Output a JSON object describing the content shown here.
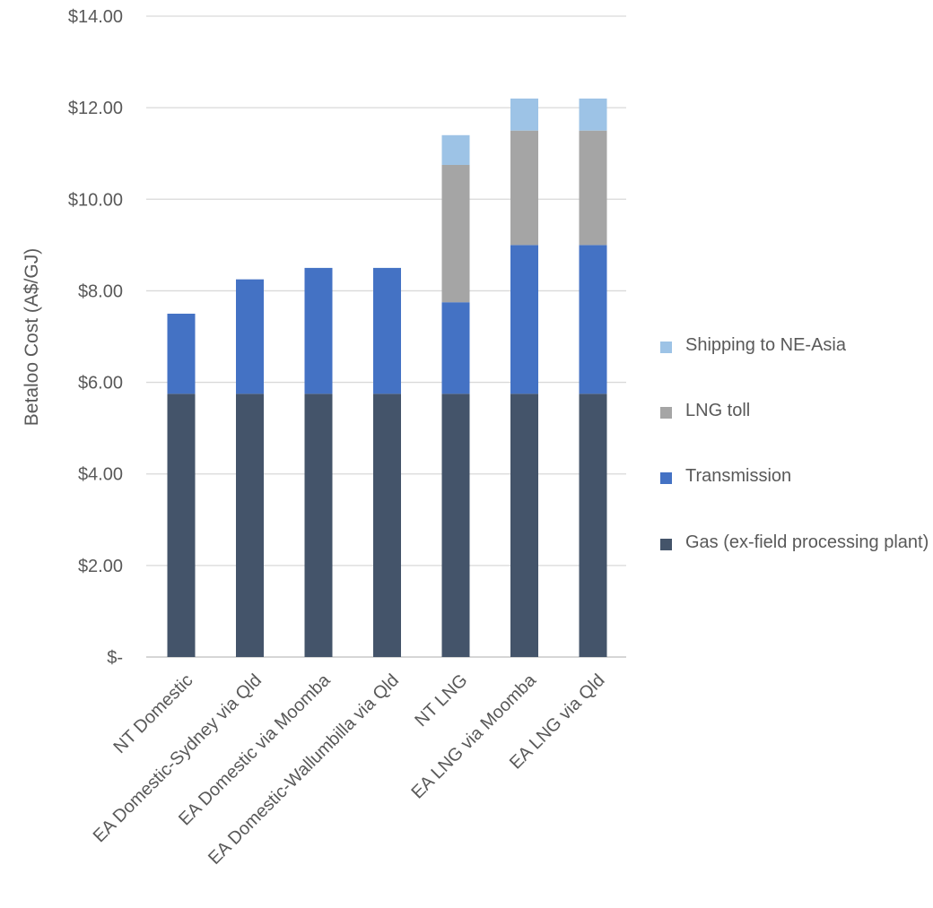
{
  "chart_data": {
    "type": "bar",
    "stacked": true,
    "title": "",
    "xlabel": "",
    "ylabel": "Betaloo Cost (A$/GJ)",
    "ylim": [
      0,
      14
    ],
    "yticks": [
      0,
      2,
      4,
      6,
      8,
      10,
      12,
      14
    ],
    "ytick_labels": [
      "$-",
      "$2.00",
      "$4.00",
      "$6.00",
      "$8.00",
      "$10.00",
      "$12.00",
      "$14.00"
    ],
    "grid": true,
    "legend_position": "right",
    "categories": [
      "NT Domestic",
      "EA Domestic-Sydney via Qld",
      "EA Domestic via Moomba",
      "EA Domestic-Wallumbilla via Qld",
      "NT LNG",
      "EA LNG via Moomba",
      "EA LNG via Qld"
    ],
    "series": [
      {
        "name": "Gas (ex-field processing plant)",
        "color": "#44546a",
        "values": [
          5.75,
          5.75,
          5.75,
          5.75,
          5.75,
          5.75,
          5.75
        ]
      },
      {
        "name": "Transmission",
        "color": "#4472c4",
        "values": [
          1.75,
          2.5,
          2.75,
          2.75,
          2.0,
          3.25,
          3.25
        ]
      },
      {
        "name": "LNG toll",
        "color": "#a5a5a5",
        "values": [
          0,
          0,
          0,
          0,
          3.0,
          2.5,
          2.5
        ]
      },
      {
        "name": "Shipping to NE-Asia",
        "color": "#9dc3e6",
        "values": [
          0,
          0,
          0,
          0,
          0.65,
          0.7,
          0.7
        ]
      }
    ]
  },
  "legend": {
    "items": [
      {
        "label": "Shipping to NE-Asia",
        "color": "#9dc3e6"
      },
      {
        "label": "LNG toll",
        "color": "#a5a5a5"
      },
      {
        "label": "Transmission",
        "color": "#4472c4"
      },
      {
        "label": "Gas (ex-field processing plant)",
        "color": "#44546a"
      }
    ]
  }
}
